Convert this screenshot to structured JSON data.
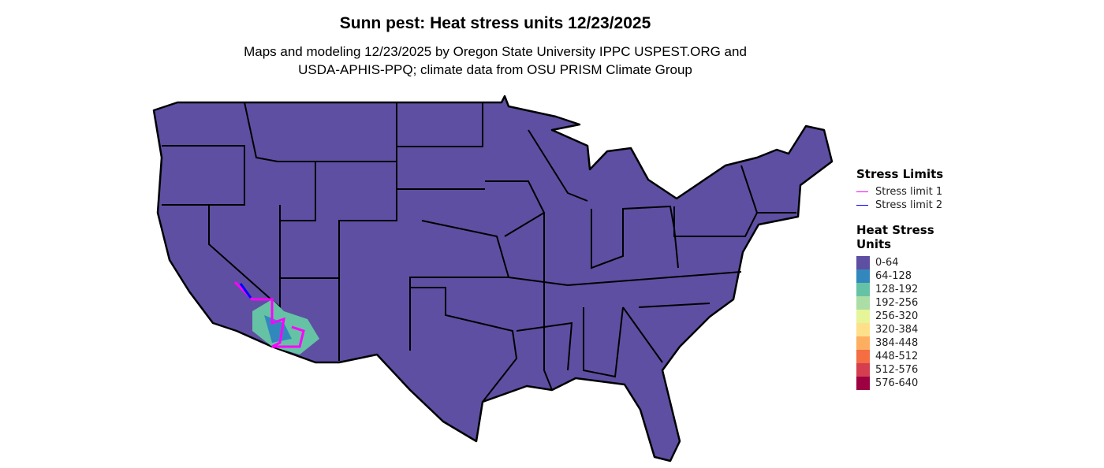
{
  "title": "Sunn pest: Heat stress units 12/23/2025",
  "subtitle_line1": "Maps and modeling 12/23/2025 by Oregon State University IPPC USPEST.ORG and",
  "subtitle_line2": "USDA-APHIS-PPQ; climate data from OSU PRISM Climate Group",
  "stress_legend": {
    "title": "Stress Limits",
    "items": [
      {
        "label": "Stress limit 1",
        "color": "#FF00FF"
      },
      {
        "label": "Stress limit 2",
        "color": "#0000FF"
      }
    ]
  },
  "heat_legend": {
    "title_line1": "Heat Stress",
    "title_line2": "Units",
    "items": [
      {
        "label": "0-64",
        "color": "#5E4FA2"
      },
      {
        "label": "64-128",
        "color": "#3288BD"
      },
      {
        "label": "128-192",
        "color": "#66C2A5"
      },
      {
        "label": "192-256",
        "color": "#ABDDA4"
      },
      {
        "label": "256-320",
        "color": "#E6F598"
      },
      {
        "label": "320-384",
        "color": "#FEE08B"
      },
      {
        "label": "384-448",
        "color": "#FDAE61"
      },
      {
        "label": "448-512",
        "color": "#F46D43"
      },
      {
        "label": "512-576",
        "color": "#D53E4F"
      },
      {
        "label": "576-640",
        "color": "#9E0142"
      }
    ]
  }
}
